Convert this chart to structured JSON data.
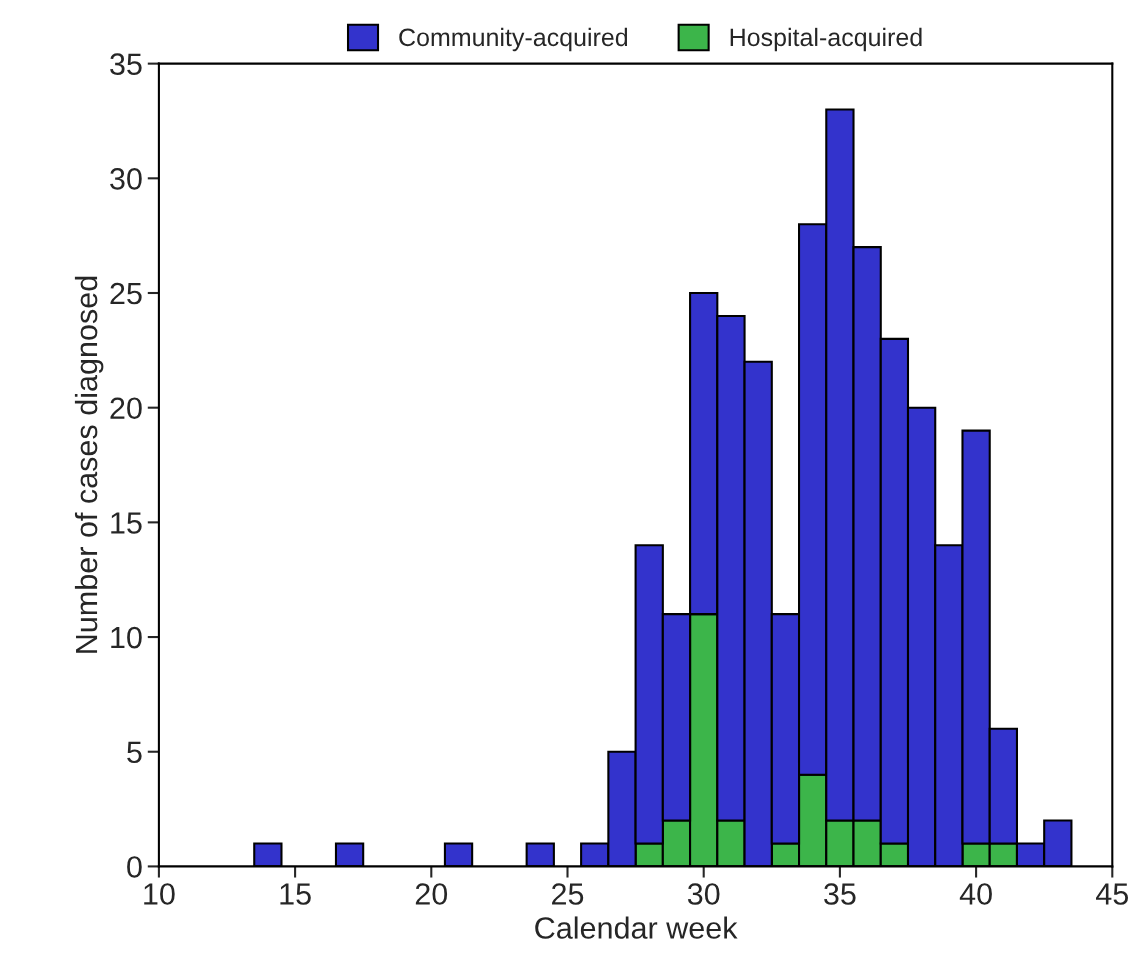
{
  "chart_data": {
    "type": "bar",
    "stacked": true,
    "xlabel": "Calendar week",
    "ylabel": "Number of cases diagnosed",
    "x": [
      14,
      17,
      21,
      24,
      26,
      27,
      28,
      29,
      30,
      31,
      32,
      33,
      34,
      35,
      36,
      37,
      38,
      39,
      40,
      41,
      42,
      43
    ],
    "series": [
      {
        "name": "Hospital-acquired",
        "color": "#3cb54a",
        "values": [
          null,
          null,
          null,
          null,
          null,
          null,
          1,
          2,
          11,
          2,
          null,
          1,
          4,
          2,
          2,
          1,
          null,
          null,
          1,
          1,
          null,
          null
        ]
      },
      {
        "name": "Community-acquired",
        "color": "#3333cc",
        "values": [
          1,
          1,
          1,
          1,
          1,
          5,
          13,
          9,
          14,
          22,
          22,
          10,
          24,
          31,
          25,
          22,
          20,
          14,
          18,
          5,
          1,
          2
        ]
      }
    ],
    "xlim": [
      10,
      45
    ],
    "xticks": [
      10,
      15,
      20,
      25,
      30,
      35,
      40,
      45
    ],
    "ylim": [
      0,
      35
    ],
    "yticks": [
      0,
      5,
      10,
      15,
      20,
      25,
      30,
      35
    ],
    "grid": false,
    "legend": "top"
  }
}
